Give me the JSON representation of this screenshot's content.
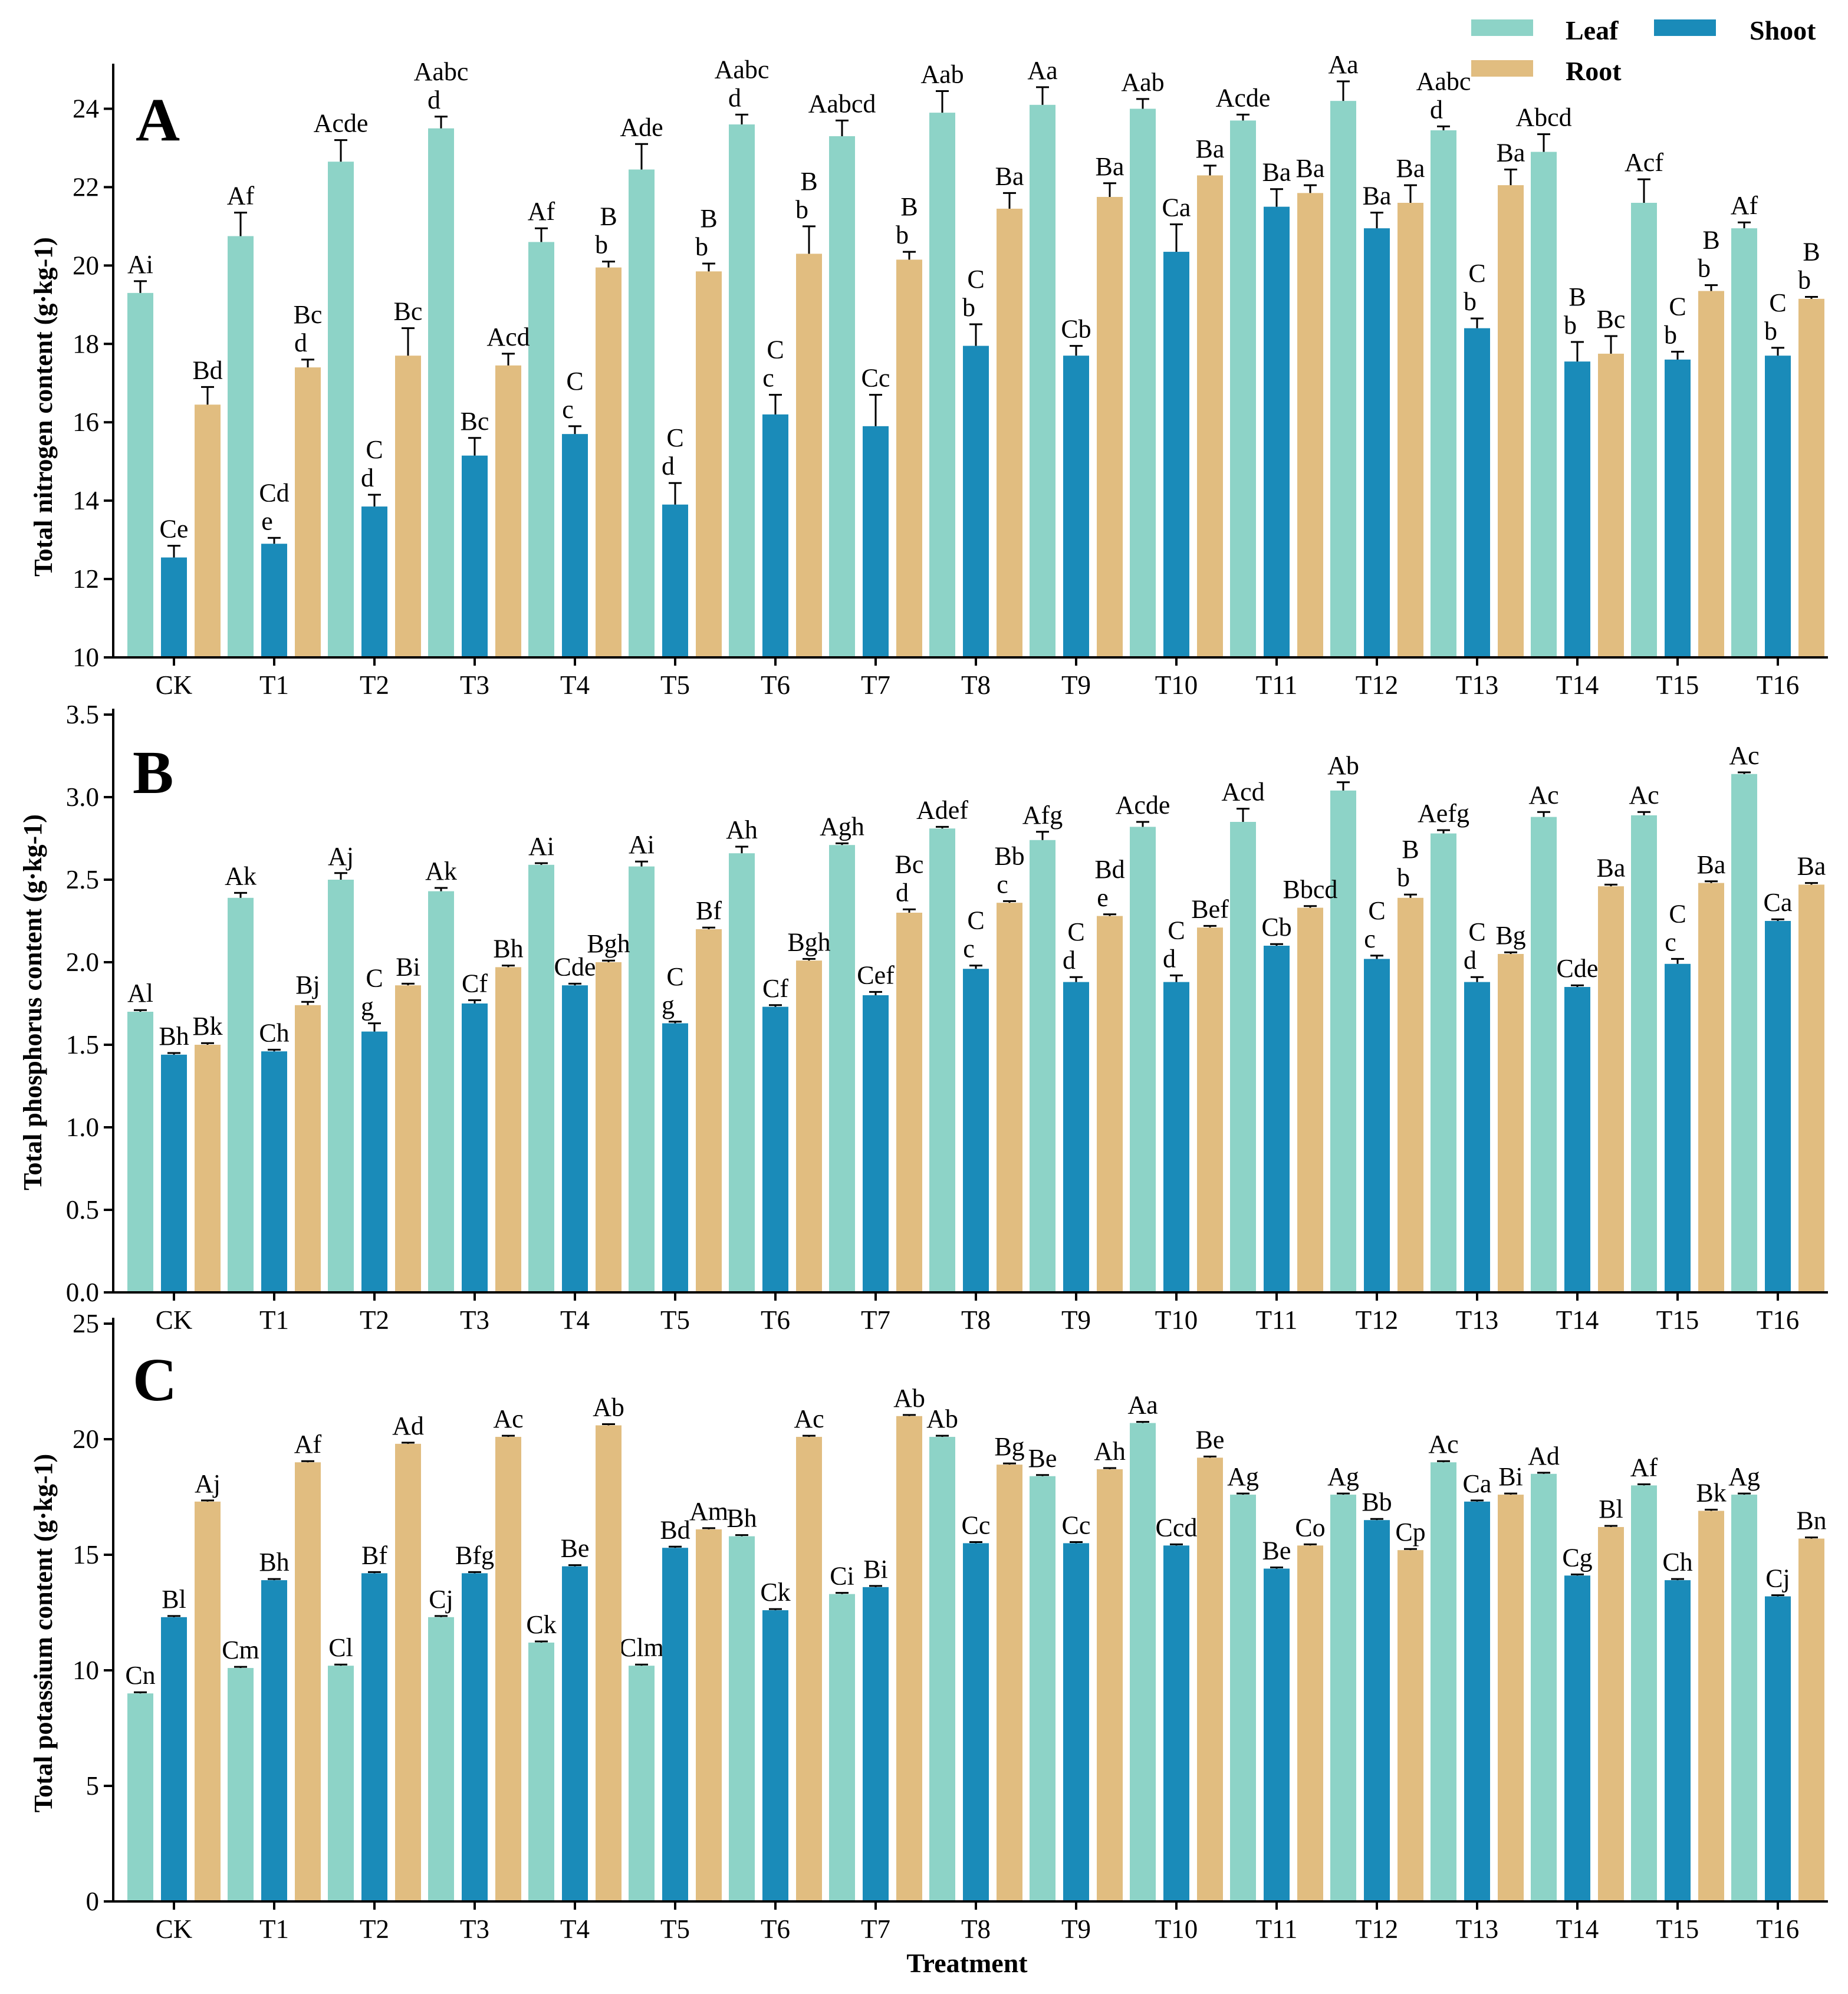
{
  "colors": {
    "Leaf": "#8dd3c7",
    "Shoot": "#1a8bb9",
    "Root": "#e1bd80",
    "axis": "#000000"
  },
  "legend": [
    {
      "name": "Leaf",
      "label": "Leaf"
    },
    {
      "name": "Shoot",
      "label": "Shoot"
    },
    {
      "name": "Root",
      "label": "Root"
    }
  ],
  "chart_data": [
    {
      "type": "bar",
      "panel": "A",
      "ylabel": "Total nitrogen content (g·kg-1)",
      "xlabel": "",
      "ylim": [
        10,
        25
      ],
      "yticks": [
        10,
        12,
        14,
        16,
        18,
        20,
        22,
        24
      ],
      "ytick_labels": [
        "10",
        "12",
        "14",
        "16",
        "18",
        "20",
        "22",
        "24"
      ],
      "categories": [
        "CK",
        "T1",
        "T2",
        "T3",
        "T4",
        "T5",
        "T6",
        "T7",
        "T8",
        "T9",
        "T10",
        "T11",
        "T12",
        "T13",
        "T14",
        "T15",
        "T16"
      ],
      "series": [
        {
          "name": "Leaf",
          "values": [
            19.3,
            20.75,
            22.65,
            23.5,
            20.6,
            22.45,
            23.6,
            23.3,
            23.9,
            24.1,
            24.0,
            23.7,
            24.2,
            23.45,
            22.9,
            21.6,
            20.95
          ],
          "errors": [
            0.3,
            0.6,
            0.55,
            0.3,
            0.35,
            0.65,
            0.25,
            0.4,
            0.55,
            0.45,
            0.25,
            0.15,
            0.5,
            0.1,
            0.45,
            0.6,
            0.15
          ],
          "labels": [
            "Ai",
            "Af",
            "Acde",
            "Aabc|d",
            "Af",
            "Ade",
            "Aabc|d",
            "Aabcd",
            "Aab",
            "Aa",
            "Aab",
            "Acde",
            "Aa",
            "Aabc|d",
            "Abcd",
            "Acf",
            "Af"
          ]
        },
        {
          "name": "Shoot",
          "values": [
            12.55,
            12.9,
            13.85,
            15.15,
            15.7,
            13.9,
            16.2,
            15.9,
            17.95,
            17.7,
            20.35,
            21.5,
            20.95,
            18.4,
            17.55,
            17.6,
            17.7
          ],
          "errors": [
            0.3,
            0.15,
            0.3,
            0.45,
            0.2,
            0.55,
            0.5,
            0.8,
            0.55,
            0.25,
            0.7,
            0.45,
            0.4,
            0.25,
            0.5,
            0.2,
            0.2
          ],
          "labels": [
            "Ce",
            "Cd|e",
            "C|d",
            "Bc",
            "C|c",
            "C|d",
            "C|c",
            "Cc",
            "C|b",
            "Cb",
            "Ca",
            "Ba",
            "Ba",
            "C|b",
            "B|b",
            "C|b",
            "C|b"
          ]
        },
        {
          "name": "Root",
          "values": [
            16.45,
            17.4,
            17.7,
            17.45,
            19.95,
            19.85,
            20.3,
            20.15,
            21.45,
            21.75,
            22.3,
            21.85,
            21.6,
            22.05,
            17.75,
            19.35,
            19.15
          ],
          "errors": [
            0.45,
            0.2,
            0.7,
            0.3,
            0.15,
            0.2,
            0.7,
            0.2,
            0.4,
            0.35,
            0.25,
            0.2,
            0.45,
            0.4,
            0.45,
            0.15,
            0.05
          ],
          "labels": [
            "Bd",
            "Bc|d",
            "Bc",
            "Acd",
            "B|b",
            "B|b",
            "B|b",
            "B|b",
            "Ba",
            "Ba",
            "Ba",
            "Ba",
            "Ba",
            "Ba",
            "Bc",
            "B|b",
            "B|b"
          ]
        }
      ]
    },
    {
      "type": "bar",
      "panel": "B",
      "ylabel": "Total phosphorus content (g·kg-1)",
      "xlabel": "",
      "ylim": [
        0,
        3.5
      ],
      "yticks": [
        0,
        0.5,
        1,
        1.5,
        2,
        2.5,
        3,
        3.5
      ],
      "ytick_labels": [
        "0.0",
        "0.5",
        "1.0",
        "1.5",
        "2.0",
        "2.5",
        "3.0",
        "3.5"
      ],
      "categories": [
        "CK",
        "T1",
        "T2",
        "T3",
        "T4",
        "T5",
        "T6",
        "T7",
        "T8",
        "T9",
        "T10",
        "T11",
        "T12",
        "T13",
        "T14",
        "T15",
        "T16"
      ],
      "series": [
        {
          "name": "Leaf",
          "values": [
            1.7,
            2.39,
            2.5,
            2.43,
            2.59,
            2.58,
            2.66,
            2.71,
            2.81,
            2.74,
            2.82,
            2.85,
            3.04,
            2.78,
            2.88,
            2.89,
            3.14
          ],
          "errors": [
            0.01,
            0.03,
            0.04,
            0.02,
            0.01,
            0.03,
            0.04,
            0.01,
            0.01,
            0.05,
            0.03,
            0.08,
            0.05,
            0.02,
            0.03,
            0.02,
            0.01
          ],
          "labels": [
            "Al",
            "Ak",
            "Aj",
            "Ak",
            "Ai",
            "Ai",
            "Ah",
            "Agh",
            "Adef",
            "Afg",
            "Acde",
            "Acd",
            "Ab",
            "Aefg",
            "Ac",
            "Ac",
            "Ac"
          ]
        },
        {
          "name": "Shoot",
          "values": [
            1.44,
            1.46,
            1.58,
            1.75,
            1.86,
            1.63,
            1.73,
            1.8,
            1.96,
            1.88,
            1.88,
            2.1,
            2.02,
            1.88,
            1.85,
            1.99,
            2.25
          ],
          "errors": [
            0.01,
            0.01,
            0.05,
            0.02,
            0.01,
            0.01,
            0.01,
            0.02,
            0.02,
            0.03,
            0.04,
            0.01,
            0.02,
            0.03,
            0.01,
            0.03,
            0.01
          ],
          "labels": [
            "Bh",
            "Ch",
            "C|g",
            "Cf",
            "Cde",
            "C|g",
            "Cf",
            "Cef",
            "C|c",
            "C|d",
            "C|d",
            "Cb",
            "C|c",
            "C|d",
            "Cde",
            "C|c",
            "Ca"
          ]
        },
        {
          "name": "Root",
          "values": [
            1.5,
            1.74,
            1.86,
            1.97,
            2.0,
            2.2,
            2.01,
            2.3,
            2.36,
            2.28,
            2.21,
            2.33,
            2.39,
            2.05,
            2.46,
            2.48,
            2.47
          ],
          "errors": [
            0.01,
            0.02,
            0.01,
            0.01,
            0.01,
            0.01,
            0.01,
            0.02,
            0.01,
            0.01,
            0.01,
            0.01,
            0.02,
            0.01,
            0.01,
            0.01,
            0.01
          ],
          "labels": [
            "Bk",
            "Bj",
            "Bi",
            "Bh",
            "Bgh",
            "Bf",
            "Bgh",
            "Bc|d",
            "Bb|c",
            "Bd|e",
            "Bef",
            "Bbcd",
            "B|b",
            "Bg",
            "Ba",
            "Ba",
            "Ba"
          ]
        }
      ]
    },
    {
      "type": "bar",
      "panel": "C",
      "ylabel": "Total potassium content (g·kg-1)",
      "xlabel": "Treatment",
      "ylim": [
        0,
        25
      ],
      "yticks": [
        0,
        5,
        10,
        15,
        20,
        25
      ],
      "ytick_labels": [
        "0",
        "5",
        "10",
        "15",
        "20",
        "25"
      ],
      "categories": [
        "CK",
        "T1",
        "T2",
        "T3",
        "T4",
        "T5",
        "T6",
        "T7",
        "T8",
        "T9",
        "T10",
        "T11",
        "T12",
        "T13",
        "T14",
        "T15",
        "T16"
      ],
      "series": [
        {
          "name": "Leaf",
          "values": [
            9.0,
            10.1,
            10.2,
            12.3,
            11.2,
            10.2,
            15.8,
            13.3,
            20.1,
            18.4,
            20.7,
            17.6,
            17.6,
            19.0,
            18.5,
            18.0,
            17.6
          ],
          "errors": [
            0.05,
            0.05,
            0.05,
            0.05,
            0.05,
            0.05,
            0.05,
            0.05,
            0.05,
            0.05,
            0.05,
            0.05,
            0.05,
            0.05,
            0.05,
            0.05,
            0.05
          ],
          "labels": [
            "Cn",
            "Cm",
            "Cl",
            "Cj",
            "Ck",
            "Clm",
            "Bh",
            "Ci",
            "Ab",
            "Be",
            "Aa",
            "Ag",
            "Ag",
            "Ac",
            "Ad",
            "Af",
            "Ag"
          ]
        },
        {
          "name": "Shoot",
          "values": [
            12.3,
            13.9,
            14.2,
            14.2,
            14.5,
            15.3,
            12.6,
            13.6,
            15.5,
            15.5,
            15.4,
            14.4,
            16.5,
            17.3,
            14.1,
            13.9,
            13.2
          ],
          "errors": [
            0.05,
            0.05,
            0.05,
            0.05,
            0.05,
            0.05,
            0.05,
            0.05,
            0.05,
            0.05,
            0.05,
            0.05,
            0.05,
            0.05,
            0.05,
            0.05,
            0.05
          ],
          "labels": [
            "Bl",
            "Bh",
            "Bf",
            "Bfg",
            "Be",
            "Bd",
            "Ck",
            "Bi",
            "Cc",
            "Cc",
            "Ccd",
            "Be",
            "Bb",
            "Ca",
            "Cg",
            "Ch",
            "Cj"
          ]
        },
        {
          "name": "Root",
          "values": [
            17.3,
            19.0,
            19.8,
            20.1,
            20.6,
            16.1,
            20.1,
            21.0,
            18.9,
            18.7,
            19.2,
            15.4,
            15.2,
            17.6,
            16.2,
            16.9,
            15.7
          ],
          "errors": [
            0.05,
            0.05,
            0.05,
            0.05,
            0.05,
            0.05,
            0.05,
            0.05,
            0.05,
            0.05,
            0.05,
            0.05,
            0.05,
            0.05,
            0.05,
            0.05,
            0.05
          ],
          "labels": [
            "Aj",
            "Af",
            "Ad",
            "Ac",
            "Ab",
            "Am",
            "Ac",
            "Ab",
            "Bg",
            "Ah",
            "Be",
            "Co",
            "Cp",
            "Bi",
            "Bl",
            "Bk",
            "Bn"
          ]
        }
      ]
    }
  ]
}
